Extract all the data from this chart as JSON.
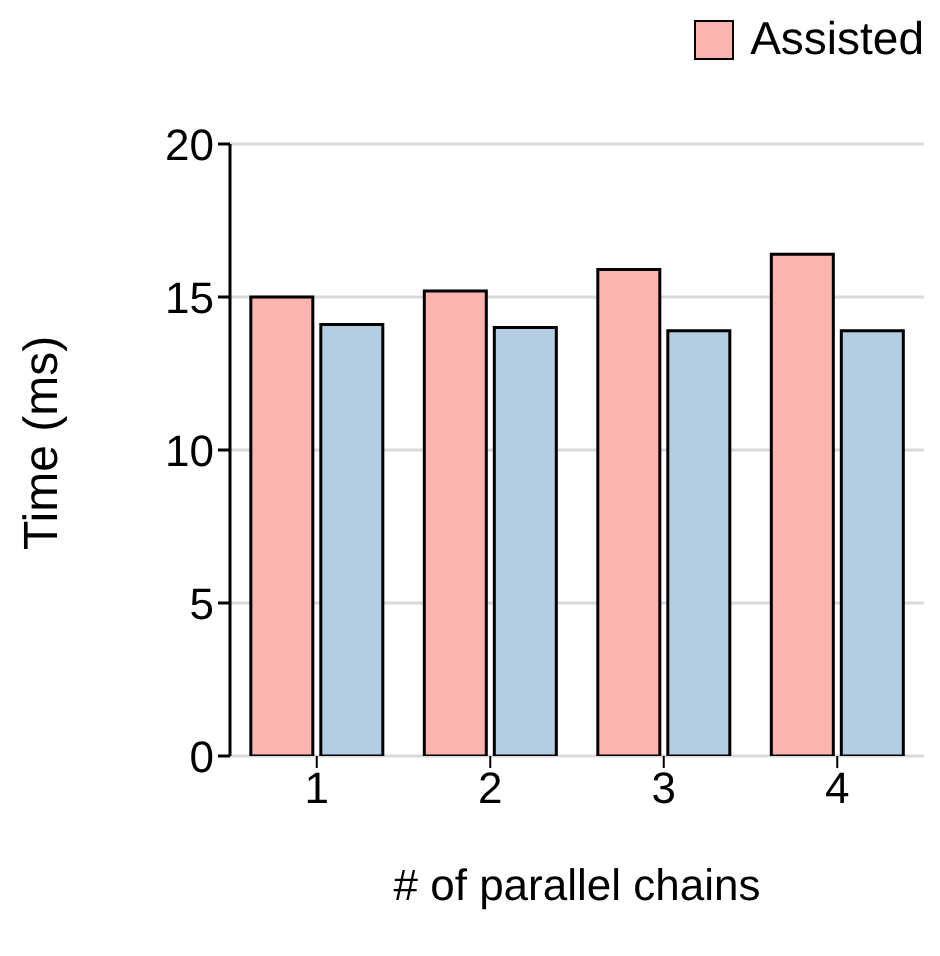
{
  "chart_data": {
    "type": "bar",
    "xlabel": "# of parallel chains",
    "ylabel": "Time (ms)",
    "categories": [
      "1",
      "2",
      "3",
      "4"
    ],
    "series": [
      {
        "name": "Assisted",
        "color": "#fbb4ae",
        "values": [
          15.0,
          15.2,
          15.9,
          16.4
        ]
      },
      {
        "color": "#b3cde3",
        "values": [
          14.1,
          14.0,
          13.9,
          13.9
        ]
      }
    ],
    "ylim": [
      0,
      20
    ],
    "yticks": [
      0,
      5,
      10,
      15,
      20
    ],
    "grid": "y",
    "legend": "top right"
  }
}
